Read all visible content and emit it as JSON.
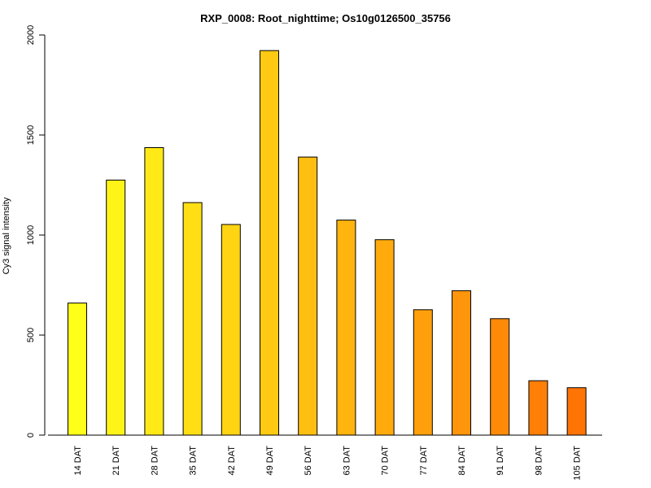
{
  "chart_data": {
    "type": "bar",
    "title": "RXP_0008: Root_nighttime; Os10g0126500_35756",
    "xlabel": "",
    "ylabel": "Cy3 signal intensity",
    "ylim": [
      0,
      2000
    ],
    "yticks": [
      0,
      500,
      1000,
      1500,
      2000
    ],
    "categories": [
      "14 DAT",
      "21 DAT",
      "28 DAT",
      "35 DAT",
      "42 DAT",
      "49 DAT",
      "56 DAT",
      "63 DAT",
      "70 DAT",
      "77 DAT",
      "84 DAT",
      "91 DAT",
      "98 DAT",
      "105 DAT"
    ],
    "values": [
      660,
      1275,
      1437,
      1162,
      1053,
      1922,
      1390,
      1075,
      977,
      627,
      722,
      582,
      272,
      237
    ],
    "colors": [
      "#FFFF19",
      "#FFF417",
      "#FFE916",
      "#FFDF14",
      "#FFD413",
      "#FFCA11",
      "#FFBF10",
      "#FFB40E",
      "#FFAA0D",
      "#FF9F0B",
      "#FF950A",
      "#FF8A08",
      "#FF7F07",
      "#FF7505"
    ],
    "grid": false,
    "legend": "none"
  }
}
